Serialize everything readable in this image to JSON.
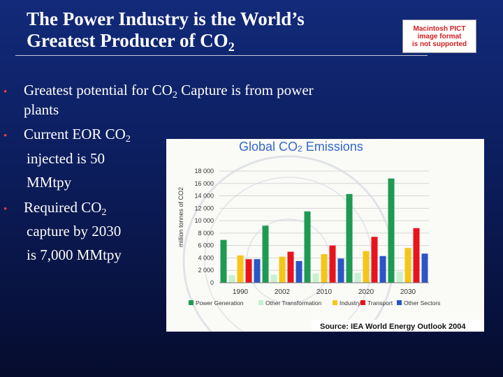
{
  "slide": {
    "title_line1": "The Power Industry is the World’s",
    "title_line2_main": "Greatest Producer of CO",
    "title_line2_sub": "2",
    "placeholder_line1": "Macintosh PICT",
    "placeholder_line2": "image format",
    "placeholder_line3": "is not supported"
  },
  "bullets": [
    {
      "text": "Greatest potential for CO",
      "sub": "2",
      "after": " Capture is from power"
    },
    {
      "text": "plants"
    },
    {
      "text": "Current EOR CO",
      "sub": "2"
    },
    {
      "text": "injected is 50"
    },
    {
      "text": "MMtpy"
    },
    {
      "text": "Required CO",
      "sub": "2"
    },
    {
      "text": "capture by 2030"
    },
    {
      "text": "is 7,000 MMtpy"
    }
  ],
  "bullet_glyph": "•",
  "chart_title": {
    "main": "Global CO",
    "sub": "2",
    "after": " Emissions"
  },
  "chart_data": {
    "type": "bar",
    "categories": [
      "1990",
      "2002",
      "2010",
      "2020",
      "2030"
    ],
    "ylabel": "million tonnes of CO2",
    "ylim": [
      0,
      18000
    ],
    "yticks": [
      "0",
      "2 000",
      "4 000",
      "6 000",
      "8 000",
      "10 000",
      "12 000",
      "14 000",
      "16 000",
      "18 000"
    ],
    "series": [
      {
        "name": "Power Generation",
        "color": "#1e9a52",
        "values": [
          6900,
          9200,
          11500,
          14300,
          16800
        ]
      },
      {
        "name": "Other Transformation",
        "color": "#c9f0cf",
        "values": [
          1200,
          1300,
          1500,
          1600,
          1800
        ]
      },
      {
        "name": "Industry",
        "color": "#f5c518",
        "values": [
          4400,
          4200,
          4600,
          5100,
          5600
        ]
      },
      {
        "name": "Transport",
        "color": "#e8141c",
        "values": [
          3800,
          5000,
          6000,
          7400,
          8800
        ]
      },
      {
        "name": "Other Sectors",
        "color": "#2a55c4",
        "values": [
          3800,
          3500,
          3900,
          4300,
          4700
        ]
      }
    ],
    "source": "Source: IEA World Energy Outlook 2004"
  }
}
